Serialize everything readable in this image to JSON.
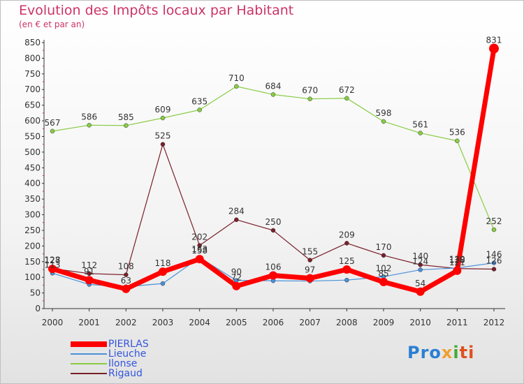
{
  "chart_data": {
    "type": "line",
    "title": "Evolution des Impôts locaux par Habitant",
    "subtitle": "(en € et par an)",
    "xlabel": "",
    "ylabel": "",
    "x": [
      "2000",
      "2001",
      "2002",
      "2003",
      "2004",
      "2005",
      "2006",
      "2007",
      "2008",
      "2009",
      "2010",
      "2011",
      "2012"
    ],
    "ylim": [
      0,
      850
    ],
    "yticks": [
      0,
      50,
      100,
      150,
      200,
      250,
      300,
      350,
      400,
      450,
      500,
      550,
      600,
      650,
      700,
      750,
      800,
      850
    ],
    "grid": false,
    "legend_position": "bottom-left",
    "series": [
      {
        "name": "PIERLAS",
        "color": "#ff0000",
        "values": [
          127,
          91,
          63,
          118,
          158,
          72,
          106,
          97,
          125,
          85,
          54,
          121,
          831
        ],
        "labels": [
          "127",
          "91",
          "63",
          "118",
          "158",
          "72",
          "106",
          "97",
          "125",
          "85",
          "54",
          "121",
          "831"
        ]
      },
      {
        "name": "Lieuche",
        "color": "#4a90d9",
        "values": [
          113,
          77,
          70,
          80,
          163,
          90,
          89,
          88,
          91,
          102,
          124,
          130,
          146
        ],
        "labels": [
          "113",
          "",
          "",
          "",
          "163",
          "90",
          "",
          "",
          "",
          "102",
          "124",
          "130",
          "146"
        ]
      },
      {
        "name": "Ilonse",
        "color": "#88cc44",
        "values": [
          567,
          586,
          585,
          609,
          635,
          710,
          684,
          670,
          672,
          598,
          561,
          536,
          252
        ],
        "labels": [
          "567",
          "586",
          "585",
          "609",
          "635",
          "710",
          "684",
          "670",
          "672",
          "598",
          "561",
          "536",
          "252"
        ]
      },
      {
        "name": "Rigaud",
        "color": "#7a1f2a",
        "values": [
          128,
          112,
          108,
          525,
          202,
          284,
          250,
          155,
          209,
          170,
          140,
          128,
          126
        ],
        "labels": [
          "128",
          "112",
          "108",
          "525",
          "202",
          "284",
          "250",
          "155",
          "209",
          "170",
          "140",
          "128",
          "126"
        ]
      }
    ]
  },
  "logo": {
    "text": [
      "Pro",
      "x",
      "i",
      "ti"
    ]
  }
}
